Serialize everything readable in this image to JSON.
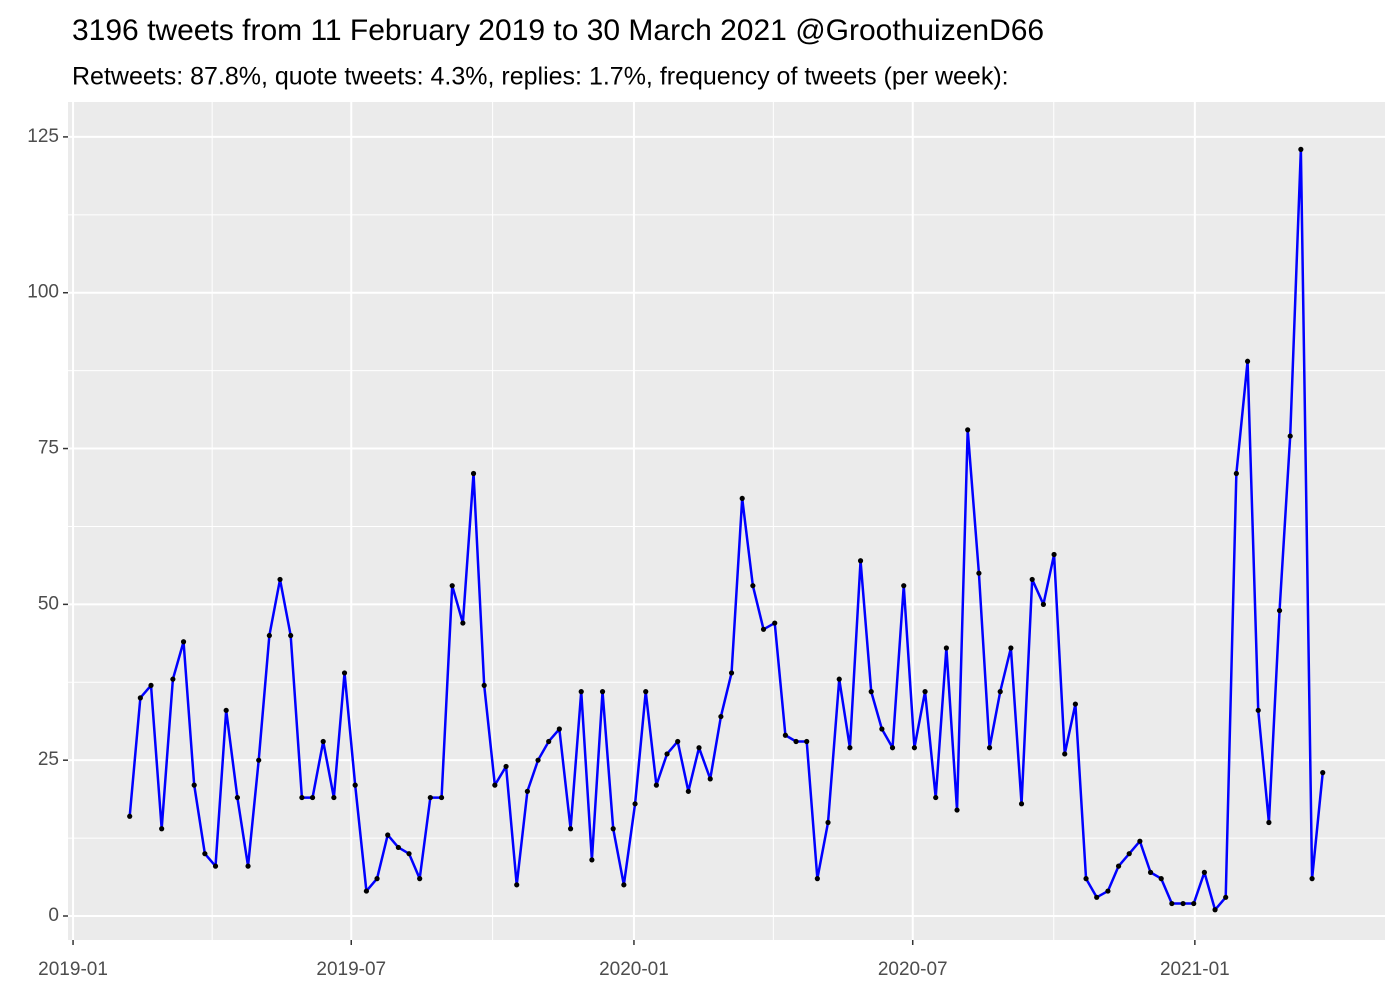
{
  "chart_data": {
    "type": "line",
    "title": "3196 tweets from 11 February 2019 to 30 March 2021 @GroothuizenD66",
    "subtitle": "Retweets: 87.8%, quote tweets: 4.3%, replies: 1.7%, frequency of tweets (per week):",
    "x": [
      2019.101,
      2019.12,
      2019.139,
      2019.158,
      2019.178,
      2019.197,
      2019.216,
      2019.235,
      2019.254,
      2019.273,
      2019.293,
      2019.312,
      2019.331,
      2019.35,
      2019.369,
      2019.388,
      2019.408,
      2019.427,
      2019.446,
      2019.465,
      2019.484,
      2019.503,
      2019.523,
      2019.542,
      2019.561,
      2019.58,
      2019.599,
      2019.618,
      2019.637,
      2019.657,
      2019.676,
      2019.695,
      2019.714,
      2019.733,
      2019.752,
      2019.772,
      2019.791,
      2019.81,
      2019.829,
      2019.848,
      2019.867,
      2019.887,
      2019.906,
      2019.925,
      2019.944,
      2019.963,
      2019.982,
      2020.002,
      2020.021,
      2020.04,
      2020.059,
      2020.078,
      2020.097,
      2020.116,
      2020.136,
      2020.155,
      2020.174,
      2020.193,
      2020.212,
      2020.231,
      2020.251,
      2020.27,
      2020.289,
      2020.308,
      2020.327,
      2020.346,
      2020.366,
      2020.385,
      2020.404,
      2020.423,
      2020.442,
      2020.461,
      2020.481,
      2020.5,
      2020.519,
      2020.538,
      2020.557,
      2020.576,
      2020.595,
      2020.615,
      2020.634,
      2020.653,
      2020.672,
      2020.691,
      2020.71,
      2020.73,
      2020.749,
      2020.768,
      2020.787,
      2020.806,
      2020.825,
      2020.845,
      2020.864,
      2020.883,
      2020.902,
      2020.921,
      2020.94,
      2020.959,
      2020.979,
      2020.998,
      2021.017,
      2021.036,
      2021.055,
      2021.074,
      2021.094,
      2021.113,
      2021.132,
      2021.151,
      2021.17,
      2021.189,
      2021.209,
      2021.228
    ],
    "series": [
      {
        "color": "#0000ff",
        "point_color": "#000000",
        "values": [
          16,
          35,
          37,
          14,
          38,
          44,
          21,
          10,
          8,
          33,
          19,
          8,
          25,
          45,
          54,
          45,
          19,
          19,
          28,
          19,
          39,
          21,
          4,
          6,
          13,
          11,
          10,
          6,
          19,
          19,
          53,
          47,
          71,
          37,
          21,
          24,
          5,
          20,
          25,
          28,
          30,
          14,
          36,
          9,
          36,
          14,
          5,
          18,
          36,
          21,
          26,
          28,
          20,
          27,
          22,
          32,
          39,
          67,
          53,
          46,
          47,
          29,
          28,
          28,
          6,
          15,
          38,
          27,
          57,
          36,
          30,
          27,
          53,
          27,
          36,
          19,
          43,
          17,
          78,
          55,
          27,
          36,
          43,
          18,
          54,
          50,
          58,
          26,
          34,
          6,
          3,
          4,
          8,
          10,
          12,
          7,
          6,
          2,
          2,
          2,
          7,
          1,
          3,
          71,
          89,
          33,
          15,
          49,
          77,
          123,
          6,
          23
        ]
      }
    ],
    "xlim": [
      2018.991,
      2021.339
    ],
    "xticks": [
      {
        "value": 2019.0,
        "label": "2019-01"
      },
      {
        "value": 2019.496,
        "label": "2019-07"
      },
      {
        "value": 2020.0,
        "label": "2020-01"
      },
      {
        "value": 2020.497,
        "label": "2020-07"
      },
      {
        "value": 2021.0,
        "label": "2021-01"
      }
    ],
    "ylim": [
      -3.85,
      130.6
    ],
    "yticks": [
      0,
      25,
      50,
      75,
      100,
      125
    ],
    "grid": true
  }
}
